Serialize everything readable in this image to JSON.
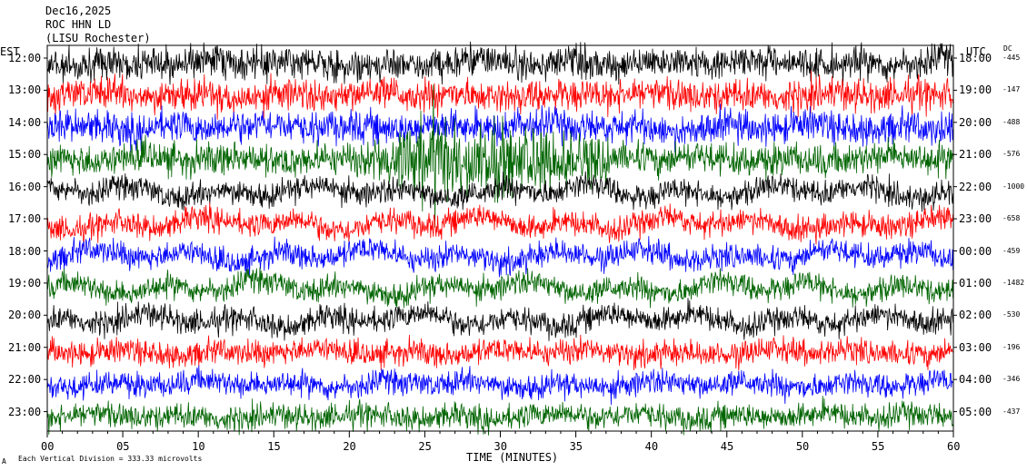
{
  "header": {
    "line1": "Dec16,2025",
    "line2": "ROC HHN LD",
    "line3": "(LISU Rochester)"
  },
  "footer": {
    "scale_note": "Each Vertical Division =  333.33 microvolts",
    "corner_mark": "A"
  },
  "colors": {
    "trace": [
      "#000000",
      "#ff0000",
      "#0000ff",
      "#006400"
    ],
    "frame": "#000000"
  },
  "chart_data": {
    "type": "line",
    "title": "",
    "xlabel": "TIME (MINUTES)",
    "left_axis_label": "EST",
    "right_axis_label": "UTC",
    "dc_label": "DC",
    "xlim": [
      0,
      60
    ],
    "x_ticks": [
      "00",
      "05",
      "10",
      "15",
      "20",
      "25",
      "30",
      "35",
      "40",
      "45",
      "50",
      "55",
      "60"
    ],
    "x_tick_values": [
      0,
      5,
      10,
      15,
      20,
      25,
      30,
      35,
      40,
      45,
      50,
      55,
      60
    ],
    "grid": false,
    "rows": [
      {
        "est": "12:00",
        "utc": "18:00",
        "dc": "-445"
      },
      {
        "est": "13:00",
        "utc": "19:00",
        "dc": "-147"
      },
      {
        "est": "14:00",
        "utc": "20:00",
        "dc": "-488"
      },
      {
        "est": "15:00",
        "utc": "21:00",
        "dc": "-576"
      },
      {
        "est": "16:00",
        "utc": "22:00",
        "dc": "-1000"
      },
      {
        "est": "17:00",
        "utc": "23:00",
        "dc": "-658"
      },
      {
        "est": "18:00",
        "utc": "00:00",
        "dc": "-459"
      },
      {
        "est": "19:00",
        "utc": "01:00",
        "dc": "-1482"
      },
      {
        "est": "20:00",
        "utc": "02:00",
        "dc": "-530"
      },
      {
        "est": "21:00",
        "utc": "03:00",
        "dc": "-196"
      },
      {
        "est": "22:00",
        "utc": "04:00",
        "dc": "-346"
      },
      {
        "est": "23:00",
        "utc": "05:00",
        "dc": "-437"
      }
    ]
  }
}
